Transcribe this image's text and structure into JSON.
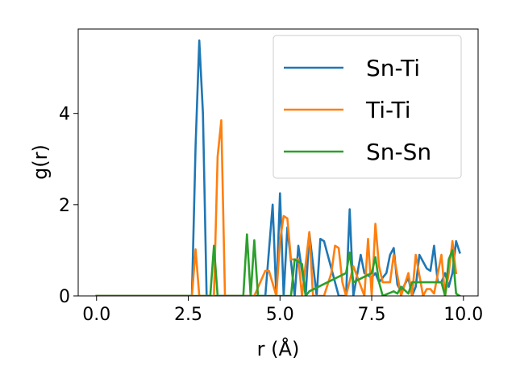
{
  "chart_data": {
    "type": "line",
    "xlabel": "r (Å)",
    "ylabel": "g(r)",
    "xlim": [
      -0.5,
      10.4
    ],
    "ylim": [
      0,
      5.85
    ],
    "xticks": [
      "0.0",
      "2.5",
      "5.0",
      "7.5",
      "10.0"
    ],
    "yticks": [
      "0",
      "2",
      "4"
    ],
    "grid": false,
    "legend_position": "top-right",
    "series": [
      {
        "name": "Sn-Ti",
        "color": "#1f77b4",
        "x": [
          0.0,
          2.6,
          2.7,
          2.8,
          2.9,
          3.0,
          4.6,
          4.8,
          4.9,
          5.0,
          5.1,
          5.2,
          5.4,
          5.5,
          5.7,
          5.8,
          6.0,
          6.1,
          6.2,
          6.6,
          6.8,
          6.9,
          7.0,
          7.2,
          7.3,
          7.5,
          7.6,
          7.7,
          7.9,
          8.0,
          8.1,
          8.2,
          8.3,
          8.5,
          8.6,
          8.7,
          8.8,
          9.0,
          9.1,
          9.2,
          9.3,
          9.4,
          9.5,
          9.6,
          9.7,
          9.8,
          9.9
        ],
        "y": [
          0,
          0,
          3.3,
          5.6,
          4.0,
          0,
          0,
          2.0,
          0,
          2.25,
          0,
          1.5,
          0,
          1.1,
          0,
          1.38,
          0,
          1.25,
          1.2,
          0,
          0,
          1.9,
          0,
          0.9,
          0.5,
          0.4,
          0.5,
          0.3,
          0.5,
          0.9,
          1.05,
          0.25,
          0.1,
          0.4,
          0,
          0.2,
          0.9,
          0.6,
          0.55,
          1.1,
          0.3,
          0.3,
          0.5,
          0.2,
          0.5,
          1.2,
          0.95
        ]
      },
      {
        "name": "Ti-Ti",
        "color": "#ff7f0e",
        "x": [
          0.0,
          2.6,
          2.7,
          2.8,
          3.2,
          3.3,
          3.4,
          3.5,
          4.3,
          4.6,
          4.7,
          4.9,
          5.0,
          5.1,
          5.2,
          5.3,
          5.5,
          5.6,
          5.8,
          5.9,
          6.2,
          6.4,
          6.5,
          6.6,
          6.7,
          6.8,
          7.0,
          7.3,
          7.4,
          7.5,
          7.6,
          7.7,
          7.8,
          8.0,
          8.1,
          8.3,
          8.5,
          8.6,
          8.7,
          8.9,
          9.0,
          9.1,
          9.2,
          9.4,
          9.5,
          9.6,
          9.7,
          9.8
        ],
        "y": [
          0,
          0,
          1.02,
          0,
          0,
          3.05,
          3.85,
          0,
          0,
          0.55,
          0.55,
          0,
          1.2,
          1.75,
          1.7,
          0.8,
          0.8,
          0,
          1.4,
          0,
          0,
          0.5,
          1.1,
          1.05,
          0.3,
          0,
          0.65,
          0,
          1.25,
          0,
          1.58,
          0.65,
          0.3,
          0.3,
          0.9,
          0,
          0.5,
          0,
          0.9,
          0,
          0.15,
          0.15,
          0.05,
          0.9,
          0,
          0.5,
          1.2,
          0.5
        ]
      },
      {
        "name": "Sn-Sn",
        "color": "#2ca02c",
        "x": [
          0.0,
          3.1,
          3.2,
          3.3,
          4.0,
          4.1,
          4.2,
          4.3,
          4.4,
          5.3,
          5.4,
          5.6,
          5.7,
          5.8,
          6.8,
          6.9,
          7.0,
          7.5,
          7.6,
          7.7,
          7.8,
          8.1,
          8.2,
          8.3,
          8.5,
          8.6,
          8.7,
          9.3,
          9.4,
          9.5,
          9.6,
          9.7,
          9.8,
          9.9
        ],
        "y": [
          0,
          0,
          1.1,
          0,
          0,
          1.35,
          0,
          1.22,
          0,
          0,
          0.8,
          0.7,
          0,
          0.1,
          0.5,
          0.95,
          0.3,
          0.5,
          0.85,
          0.3,
          0,
          0.1,
          0.05,
          0.2,
          0.05,
          0.3,
          0.3,
          0.3,
          0.3,
          0,
          0.8,
          1.0,
          0.05,
          0
        ]
      }
    ]
  }
}
